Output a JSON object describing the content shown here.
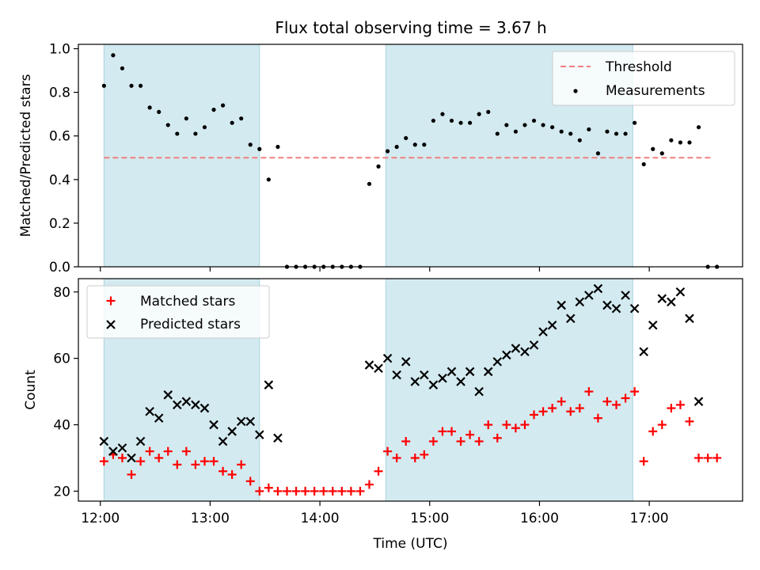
{
  "chart_data": [
    {
      "type": "scatter",
      "title": "Flux total observing time = 3.67 h",
      "xlabel": "",
      "ylabel": "Matched/Predicted stars",
      "xlim": [
        "11:48",
        "17:51"
      ],
      "ylim": [
        0,
        1.02
      ],
      "x_ticks": [
        "12:00",
        "13:00",
        "14:00",
        "15:00",
        "16:00",
        "17:00"
      ],
      "y_ticks": [
        "0.0",
        "0.2",
        "0.4",
        "0.6",
        "0.8",
        "1.0"
      ],
      "shaded_intervals": [
        [
          "12:02",
          "13:27"
        ],
        [
          "14:36",
          "16:51"
        ]
      ],
      "legend_position": "upper right",
      "threshold": {
        "name": "Threshold",
        "y": 0.5,
        "x_start": "12:02",
        "x_end": "17:35",
        "color": "#f08080"
      },
      "series": [
        {
          "name": "Measurements",
          "color": "#000000",
          "points": [
            [
              "12:02",
              0.83
            ],
            [
              "12:07",
              0.97
            ],
            [
              "12:12",
              0.91
            ],
            [
              "12:17",
              0.83
            ],
            [
              "12:22",
              0.83
            ],
            [
              "12:27",
              0.73
            ],
            [
              "12:32",
              0.71
            ],
            [
              "12:37",
              0.65
            ],
            [
              "12:42",
              0.61
            ],
            [
              "12:47",
              0.68
            ],
            [
              "12:52",
              0.61
            ],
            [
              "12:57",
              0.64
            ],
            [
              "13:02",
              0.72
            ],
            [
              "13:07",
              0.74
            ],
            [
              "13:12",
              0.66
            ],
            [
              "13:17",
              0.68
            ],
            [
              "13:22",
              0.56
            ],
            [
              "13:27",
              0.54
            ],
            [
              "13:32",
              0.4
            ],
            [
              "13:37",
              0.55
            ],
            [
              "13:42",
              0.0
            ],
            [
              "13:47",
              0.0
            ],
            [
              "13:52",
              0.0
            ],
            [
              "13:57",
              0.0
            ],
            [
              "14:02",
              0.0
            ],
            [
              "14:07",
              0.0
            ],
            [
              "14:12",
              0.0
            ],
            [
              "14:17",
              0.0
            ],
            [
              "14:22",
              0.0
            ],
            [
              "14:27",
              0.38
            ],
            [
              "14:32",
              0.46
            ],
            [
              "14:37",
              0.53
            ],
            [
              "14:42",
              0.55
            ],
            [
              "14:47",
              0.59
            ],
            [
              "14:52",
              0.56
            ],
            [
              "14:57",
              0.56
            ],
            [
              "15:02",
              0.67
            ],
            [
              "15:07",
              0.7
            ],
            [
              "15:12",
              0.67
            ],
            [
              "15:17",
              0.66
            ],
            [
              "15:22",
              0.66
            ],
            [
              "15:27",
              0.7
            ],
            [
              "15:32",
              0.71
            ],
            [
              "15:37",
              0.61
            ],
            [
              "15:42",
              0.65
            ],
            [
              "15:47",
              0.62
            ],
            [
              "15:52",
              0.65
            ],
            [
              "15:57",
              0.67
            ],
            [
              "16:02",
              0.65
            ],
            [
              "16:07",
              0.64
            ],
            [
              "16:12",
              0.62
            ],
            [
              "16:17",
              0.61
            ],
            [
              "16:22",
              0.58
            ],
            [
              "16:27",
              0.63
            ],
            [
              "16:32",
              0.52
            ],
            [
              "16:37",
              0.62
            ],
            [
              "16:42",
              0.61
            ],
            [
              "16:47",
              0.61
            ],
            [
              "16:52",
              0.66
            ],
            [
              "16:57",
              0.47
            ],
            [
              "17:02",
              0.54
            ],
            [
              "17:07",
              0.52
            ],
            [
              "17:12",
              0.58
            ],
            [
              "17:17",
              0.57
            ],
            [
              "17:22",
              0.57
            ],
            [
              "17:27",
              0.64
            ],
            [
              "17:32",
              0.0
            ],
            [
              "17:37",
              0.0
            ]
          ]
        }
      ]
    },
    {
      "type": "scatter",
      "title": "",
      "xlabel": "Time (UTC)",
      "ylabel": "Count",
      "xlim": [
        "11:48",
        "17:51"
      ],
      "ylim": [
        17,
        84
      ],
      "x_ticks": [
        "12:00",
        "13:00",
        "14:00",
        "15:00",
        "16:00",
        "17:00"
      ],
      "y_ticks": [
        "20",
        "40",
        "60",
        "80"
      ],
      "shaded_intervals": [
        [
          "12:02",
          "13:27"
        ],
        [
          "14:36",
          "16:51"
        ]
      ],
      "legend_position": "upper left",
      "series": [
        {
          "name": "Matched stars",
          "color": "#ff0000",
          "marker": "plus",
          "points": [
            [
              "12:02",
              29
            ],
            [
              "12:07",
              31
            ],
            [
              "12:12",
              30
            ],
            [
              "12:17",
              25
            ],
            [
              "12:22",
              29
            ],
            [
              "12:27",
              32
            ],
            [
              "12:32",
              30
            ],
            [
              "12:37",
              32
            ],
            [
              "12:42",
              28
            ],
            [
              "12:47",
              32
            ],
            [
              "12:52",
              28
            ],
            [
              "12:57",
              29
            ],
            [
              "13:02",
              29
            ],
            [
              "13:07",
              26
            ],
            [
              "13:12",
              25
            ],
            [
              "13:17",
              28
            ],
            [
              "13:22",
              23
            ],
            [
              "13:27",
              20
            ],
            [
              "13:32",
              21
            ],
            [
              "13:37",
              20
            ],
            [
              "13:42",
              20
            ],
            [
              "13:47",
              20
            ],
            [
              "13:52",
              20
            ],
            [
              "13:57",
              20
            ],
            [
              "14:02",
              20
            ],
            [
              "14:07",
              20
            ],
            [
              "14:12",
              20
            ],
            [
              "14:17",
              20
            ],
            [
              "14:22",
              20
            ],
            [
              "14:27",
              22
            ],
            [
              "14:32",
              26
            ],
            [
              "14:37",
              32
            ],
            [
              "14:42",
              30
            ],
            [
              "14:47",
              35
            ],
            [
              "14:52",
              30
            ],
            [
              "14:57",
              31
            ],
            [
              "15:02",
              35
            ],
            [
              "15:07",
              38
            ],
            [
              "15:12",
              38
            ],
            [
              "15:17",
              35
            ],
            [
              "15:22",
              37
            ],
            [
              "15:27",
              35
            ],
            [
              "15:32",
              40
            ],
            [
              "15:37",
              36
            ],
            [
              "15:42",
              40
            ],
            [
              "15:47",
              39
            ],
            [
              "15:52",
              40
            ],
            [
              "15:57",
              43
            ],
            [
              "16:02",
              44
            ],
            [
              "16:07",
              45
            ],
            [
              "16:12",
              47
            ],
            [
              "16:17",
              44
            ],
            [
              "16:22",
              45
            ],
            [
              "16:27",
              50
            ],
            [
              "16:32",
              42
            ],
            [
              "16:37",
              47
            ],
            [
              "16:42",
              46
            ],
            [
              "16:47",
              48
            ],
            [
              "16:52",
              50
            ],
            [
              "16:57",
              29
            ],
            [
              "17:02",
              38
            ],
            [
              "17:07",
              40
            ],
            [
              "17:12",
              45
            ],
            [
              "17:17",
              46
            ],
            [
              "17:22",
              41
            ],
            [
              "17:27",
              30
            ],
            [
              "17:32",
              30
            ],
            [
              "17:37",
              30
            ]
          ]
        },
        {
          "name": "Predicted stars",
          "color": "#000000",
          "marker": "x",
          "points": [
            [
              "12:02",
              35
            ],
            [
              "12:07",
              32
            ],
            [
              "12:12",
              33
            ],
            [
              "12:17",
              30
            ],
            [
              "12:22",
              35
            ],
            [
              "12:27",
              44
            ],
            [
              "12:32",
              42
            ],
            [
              "12:37",
              49
            ],
            [
              "12:42",
              46
            ],
            [
              "12:47",
              47
            ],
            [
              "12:52",
              46
            ],
            [
              "12:57",
              45
            ],
            [
              "13:02",
              40
            ],
            [
              "13:07",
              35
            ],
            [
              "13:12",
              38
            ],
            [
              "13:17",
              41
            ],
            [
              "13:22",
              41
            ],
            [
              "13:27",
              37
            ],
            [
              "13:32",
              52
            ],
            [
              "13:37",
              36
            ],
            [
              "14:27",
              58
            ],
            [
              "14:32",
              57
            ],
            [
              "14:37",
              60
            ],
            [
              "14:42",
              55
            ],
            [
              "14:47",
              59
            ],
            [
              "14:52",
              53
            ],
            [
              "14:57",
              55
            ],
            [
              "15:02",
              52
            ],
            [
              "15:07",
              54
            ],
            [
              "15:12",
              56
            ],
            [
              "15:17",
              53
            ],
            [
              "15:22",
              56
            ],
            [
              "15:27",
              50
            ],
            [
              "15:32",
              56
            ],
            [
              "15:37",
              59
            ],
            [
              "15:42",
              61
            ],
            [
              "15:47",
              63
            ],
            [
              "15:52",
              62
            ],
            [
              "15:57",
              64
            ],
            [
              "16:02",
              68
            ],
            [
              "16:07",
              70
            ],
            [
              "16:12",
              76
            ],
            [
              "16:17",
              72
            ],
            [
              "16:22",
              77
            ],
            [
              "16:27",
              79
            ],
            [
              "16:32",
              81
            ],
            [
              "16:37",
              76
            ],
            [
              "16:42",
              75
            ],
            [
              "16:47",
              79
            ],
            [
              "16:52",
              75
            ],
            [
              "16:57",
              62
            ],
            [
              "17:02",
              70
            ],
            [
              "17:07",
              78
            ],
            [
              "17:12",
              77
            ],
            [
              "17:17",
              80
            ],
            [
              "17:22",
              72
            ],
            [
              "17:27",
              47
            ]
          ]
        }
      ]
    }
  ]
}
